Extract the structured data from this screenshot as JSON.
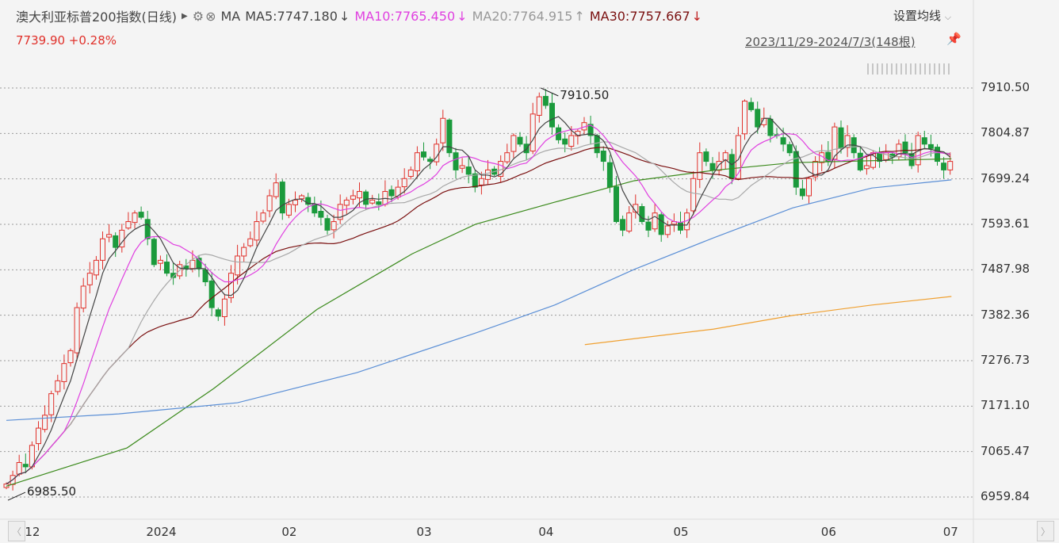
{
  "header": {
    "title": "澳大利亚标普200指数(日线)",
    "play_icon": "triangle-right",
    "settings_icon": "gear",
    "close_icon": "circle-x",
    "ma_label": "MA",
    "ma5": "MA5:7747.180",
    "ma5_arrow": "↓",
    "ma10": "MA10:7765.450",
    "ma10_arrow": "↓",
    "ma20": "MA20:7764.915",
    "ma20_arrow": "↑",
    "ma30": "MA30:7757.667",
    "ma30_arrow": "↓",
    "price": "7739.90 +0.28%",
    "set_ma": "设置均线",
    "range": "2023/11/29-2024/7/3(148根)",
    "pin_icon": "pin"
  },
  "colors": {
    "up": "#e0302a",
    "down": "#1b9a3c",
    "ma5": "#444444",
    "ma10": "#e040e0",
    "ma20": "#a8a8a8",
    "ma30": "#7a1010",
    "ma60": "#3b8a1c",
    "ma120": "#5b8fd6",
    "ma250": "#f0a030"
  },
  "chart_data": {
    "type": "candlestick",
    "title": "澳大利亚标普200指数(日线)",
    "ylim": [
      6959.84,
      7910.5
    ],
    "y_ticks": [
      "7910.50",
      "7804.87",
      "7699.24",
      "7593.61",
      "7487.98",
      "7382.36",
      "7276.73",
      "7171.10",
      "7065.47",
      "6959.84"
    ],
    "x_ticks": [
      {
        "label": "12",
        "index": 4
      },
      {
        "label": "2024",
        "index": 24
      },
      {
        "label": "02",
        "index": 44
      },
      {
        "label": "03",
        "index": 65
      },
      {
        "label": "04",
        "index": 84
      },
      {
        "label": "05",
        "index": 105
      },
      {
        "label": "06",
        "index": 128
      },
      {
        "label": "07",
        "index": 147
      }
    ],
    "annotations": [
      {
        "text": "7910.50",
        "index": 83,
        "value": 7910.5
      },
      {
        "text": "6985.50",
        "index": 0,
        "value": 6985.5
      }
    ],
    "closes": [
      6990,
      7010,
      7040,
      7030,
      7080,
      7120,
      7150,
      7200,
      7230,
      7270,
      7300,
      7400,
      7450,
      7480,
      7510,
      7560,
      7570,
      7540,
      7580,
      7600,
      7620,
      7610,
      7560,
      7500,
      7510,
      7480,
      7470,
      7500,
      7490,
      7510,
      7490,
      7460,
      7400,
      7380,
      7420,
      7480,
      7520,
      7540,
      7560,
      7600,
      7620,
      7660,
      7690,
      7620,
      7640,
      7650,
      7660,
      7640,
      7620,
      7610,
      7580,
      7600,
      7640,
      7650,
      7660,
      7670,
      7640,
      7650,
      7640,
      7670,
      7660,
      7680,
      7700,
      7720,
      7760,
      7750,
      7740,
      7780,
      7840,
      7760,
      7720,
      7730,
      7710,
      7680,
      7700,
      7720,
      7710,
      7740,
      7760,
      7800,
      7780,
      7760,
      7850,
      7890,
      7870,
      7820,
      7790,
      7780,
      7800,
      7810,
      7830,
      7800,
      7760,
      7740,
      7680,
      7600,
      7580,
      7620,
      7640,
      7600,
      7580,
      7620,
      7570,
      7590,
      7600,
      7580,
      7620,
      7700,
      7760,
      7740,
      7720,
      7740,
      7760,
      7700,
      7800,
      7880,
      7860,
      7820,
      7840,
      7800,
      7800,
      7780,
      7760,
      7680,
      7660,
      7700,
      7740,
      7760,
      7740,
      7820,
      7770,
      7800,
      7760,
      7720,
      7730,
      7760,
      7740,
      7760,
      7750,
      7780,
      7760,
      7730,
      7800,
      7780,
      7770,
      7740,
      7720,
      7739.9
    ],
    "long_ma": [
      {
        "name": "MA60",
        "color_key": "ma60",
        "points": [
          [
            0,
            6985
          ],
          [
            18.8,
            7074
          ],
          [
            32.3,
            7212
          ],
          [
            48.4,
            7396
          ],
          [
            63.2,
            7525
          ],
          [
            73.1,
            7594
          ],
          [
            85.4,
            7645
          ],
          [
            97.8,
            7695
          ],
          [
            110.1,
            7719
          ],
          [
            122.5,
            7737
          ],
          [
            147.2,
            7746
          ]
        ]
      },
      {
        "name": "MA120",
        "color_key": "ma120",
        "points": [
          [
            0,
            7138
          ],
          [
            17.5,
            7153
          ],
          [
            36,
            7179
          ],
          [
            54.6,
            7249
          ],
          [
            73.1,
            7341
          ],
          [
            85.4,
            7406
          ],
          [
            97.8,
            7489
          ],
          [
            110.1,
            7562
          ],
          [
            122.5,
            7632
          ],
          [
            134.8,
            7678
          ],
          [
            147.2,
            7697
          ]
        ]
      },
      {
        "name": "MA250",
        "color_key": "ma250",
        "points": [
          [
            90.1,
            7314
          ],
          [
            110.1,
            7350
          ],
          [
            122.5,
            7382
          ],
          [
            134.8,
            7406
          ],
          [
            147.2,
            7426
          ]
        ]
      }
    ]
  }
}
